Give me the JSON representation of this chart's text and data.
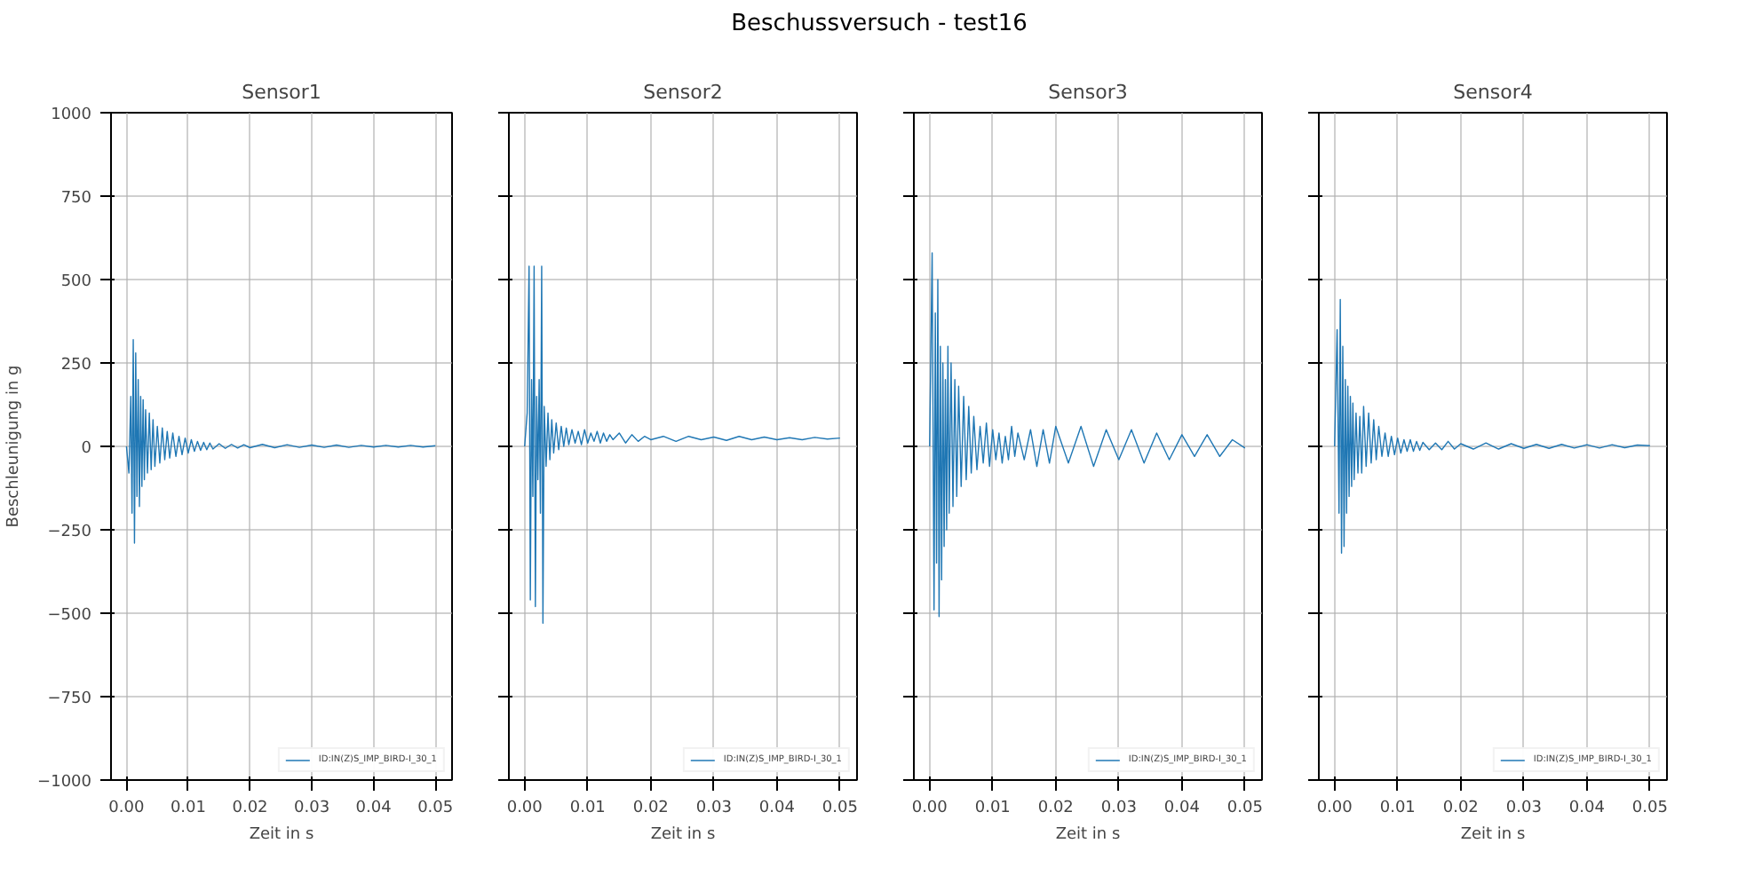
{
  "chart_data": [
    {
      "type": "line",
      "title": "Sensor1",
      "xlabel": "Zeit in s",
      "ylabel": "Beschleunigung in g",
      "annotations": [
        "Beschussversuch - test16"
      ],
      "xlim": [
        -0.0025,
        0.0527
      ],
      "ylim": [
        -1000,
        1000
      ],
      "xticks": [
        {
          "value": 0,
          "label": "0.00"
        },
        {
          "value": 0.01,
          "label": "0.01"
        },
        {
          "value": 0.02,
          "label": "0.02"
        },
        {
          "value": 0.03,
          "label": "0.03"
        },
        {
          "value": 0.04,
          "label": "0.04"
        },
        {
          "value": 0.05,
          "label": "0.05"
        }
      ],
      "yticks": [
        {
          "value": -1000,
          "label": "−1000"
        },
        {
          "value": -750,
          "label": "−750"
        },
        {
          "value": -500,
          "label": "−500"
        },
        {
          "value": -250,
          "label": "−250"
        },
        0,
        250,
        500,
        750,
        1000
      ],
      "grid": true,
      "legend": "bottom right",
      "x": [
        0,
        0.0004,
        0.0007,
        0.0009,
        0.0011,
        0.0013,
        0.0015,
        0.0017,
        0.0019,
        0.0021,
        0.0023,
        0.0025,
        0.0027,
        0.0029,
        0.0031,
        0.0034,
        0.0037,
        0.004,
        0.0043,
        0.0046,
        0.005,
        0.0054,
        0.0058,
        0.0062,
        0.0066,
        0.007,
        0.0075,
        0.008,
        0.0085,
        0.009,
        0.0095,
        0.01,
        0.0105,
        0.011,
        0.0115,
        0.012,
        0.0125,
        0.013,
        0.0135,
        0.014,
        0.015,
        0.016,
        0.017,
        0.018,
        0.019,
        0.02,
        0.022,
        0.024,
        0.026,
        0.028,
        0.03,
        0.032,
        0.034,
        0.036,
        0.038,
        0.04,
        0.042,
        0.044,
        0.046,
        0.048,
        0.05
      ],
      "series": [
        {
          "name": "ID:IN(Z)S_IMP_BIRD-I_30_1",
          "color": "#1f77b4",
          "values": [
            0,
            -80,
            150,
            -200,
            320,
            -290,
            280,
            -150,
            200,
            -180,
            150,
            -120,
            140,
            -100,
            110,
            -80,
            100,
            -70,
            80,
            -60,
            60,
            -50,
            55,
            -40,
            45,
            -35,
            40,
            -30,
            30,
            -25,
            25,
            -20,
            20,
            -15,
            15,
            -12,
            12,
            -10,
            10,
            -8,
            8,
            -6,
            6,
            -5,
            5,
            -4,
            6,
            -4,
            5,
            -3,
            4,
            -3,
            4,
            -3,
            3,
            -2,
            3,
            -2,
            3,
            -2,
            2
          ]
        }
      ]
    },
    {
      "type": "line",
      "title": "Sensor2",
      "xlabel": "Zeit in s",
      "xlim": [
        -0.0025,
        0.0527
      ],
      "ylim": [
        -1000,
        1000
      ],
      "tick_labels": "x",
      "xticks": [
        {
          "value": 0,
          "label": "0.00"
        },
        {
          "value": 0.01,
          "label": "0.01"
        },
        {
          "value": 0.02,
          "label": "0.02"
        },
        {
          "value": 0.03,
          "label": "0.03"
        },
        {
          "value": 0.04,
          "label": "0.04"
        },
        {
          "value": 0.05,
          "label": "0.05"
        }
      ],
      "yticks": [
        -1000,
        -750,
        -500,
        -250,
        0,
        250,
        500,
        750,
        1000
      ],
      "grid": true,
      "legend": "bottom right",
      "x": [
        0,
        0.0004,
        0.0007,
        0.0009,
        0.0011,
        0.0013,
        0.0015,
        0.0017,
        0.0019,
        0.0021,
        0.0023,
        0.0025,
        0.0027,
        0.0029,
        0.0031,
        0.0034,
        0.0037,
        0.004,
        0.0043,
        0.0046,
        0.005,
        0.0054,
        0.0058,
        0.0062,
        0.0066,
        0.007,
        0.0075,
        0.008,
        0.0085,
        0.009,
        0.0095,
        0.01,
        0.0105,
        0.011,
        0.0115,
        0.012,
        0.0125,
        0.013,
        0.0135,
        0.014,
        0.015,
        0.016,
        0.017,
        0.018,
        0.019,
        0.02,
        0.022,
        0.024,
        0.026,
        0.028,
        0.03,
        0.032,
        0.034,
        0.036,
        0.038,
        0.04,
        0.042,
        0.044,
        0.046,
        0.048,
        0.05
      ],
      "series": [
        {
          "name": "ID:IN(Z)S_IMP_BIRD-I_30_1",
          "color": "#1f77b4",
          "values": [
            0,
            100,
            540,
            -460,
            200,
            -150,
            540,
            -480,
            150,
            -100,
            200,
            -200,
            540,
            -530,
            120,
            -60,
            100,
            -40,
            80,
            -20,
            70,
            -10,
            60,
            0,
            55,
            5,
            50,
            10,
            45,
            5,
            50,
            10,
            40,
            15,
            45,
            10,
            40,
            15,
            35,
            20,
            40,
            10,
            35,
            15,
            30,
            20,
            30,
            15,
            30,
            20,
            28,
            18,
            30,
            20,
            28,
            20,
            26,
            20,
            27,
            22,
            25
          ]
        }
      ]
    },
    {
      "type": "line",
      "title": "Sensor3",
      "xlabel": "Zeit in s",
      "xlim": [
        -0.0025,
        0.0527
      ],
      "ylim": [
        -1000,
        1000
      ],
      "tick_labels": "x",
      "xticks": [
        {
          "value": 0,
          "label": "0.00"
        },
        {
          "value": 0.01,
          "label": "0.01"
        },
        {
          "value": 0.02,
          "label": "0.02"
        },
        {
          "value": 0.03,
          "label": "0.03"
        },
        {
          "value": 0.04,
          "label": "0.04"
        },
        {
          "value": 0.05,
          "label": "0.05"
        }
      ],
      "yticks": [
        -1000,
        -750,
        -500,
        -250,
        0,
        250,
        500,
        750,
        1000
      ],
      "grid": true,
      "legend": "bottom right",
      "x": [
        0,
        0.0004,
        0.0007,
        0.0009,
        0.0011,
        0.0013,
        0.0015,
        0.0017,
        0.0019,
        0.0021,
        0.0023,
        0.0025,
        0.0027,
        0.0029,
        0.0031,
        0.0034,
        0.0037,
        0.004,
        0.0043,
        0.0046,
        0.005,
        0.0054,
        0.0058,
        0.0062,
        0.0066,
        0.007,
        0.0075,
        0.008,
        0.0085,
        0.009,
        0.0095,
        0.01,
        0.0105,
        0.011,
        0.0115,
        0.012,
        0.0125,
        0.013,
        0.0135,
        0.014,
        0.015,
        0.016,
        0.017,
        0.018,
        0.019,
        0.02,
        0.022,
        0.024,
        0.026,
        0.028,
        0.03,
        0.032,
        0.034,
        0.036,
        0.038,
        0.04,
        0.042,
        0.044,
        0.046,
        0.048,
        0.05
      ],
      "series": [
        {
          "name": "ID:IN(Z)S_IMP_BIRD-I_30_1",
          "color": "#1f77b4",
          "values": [
            0,
            580,
            -490,
            400,
            -350,
            500,
            -510,
            300,
            -400,
            250,
            -300,
            200,
            -250,
            300,
            -200,
            250,
            -180,
            200,
            -150,
            180,
            -120,
            150,
            -100,
            120,
            -80,
            90,
            -70,
            60,
            -50,
            70,
            -60,
            50,
            -40,
            40,
            -50,
            30,
            -40,
            60,
            -30,
            40,
            -40,
            50,
            -60,
            50,
            -50,
            60,
            -50,
            60,
            -60,
            50,
            -40,
            50,
            -50,
            40,
            -40,
            35,
            -30,
            35,
            -30,
            20,
            -5
          ]
        }
      ]
    },
    {
      "type": "line",
      "title": "Sensor4",
      "xlabel": "Zeit in s",
      "xlim": [
        -0.0025,
        0.0527
      ],
      "ylim": [
        -1000,
        1000
      ],
      "tick_labels": "x",
      "xticks": [
        {
          "value": 0,
          "label": "0.00"
        },
        {
          "value": 0.01,
          "label": "0.01"
        },
        {
          "value": 0.02,
          "label": "0.02"
        },
        {
          "value": 0.03,
          "label": "0.03"
        },
        {
          "value": 0.04,
          "label": "0.04"
        },
        {
          "value": 0.05,
          "label": "0.05"
        }
      ],
      "yticks": [
        -1000,
        -750,
        -500,
        -250,
        0,
        250,
        500,
        750,
        1000
      ],
      "grid": true,
      "legend": "bottom right",
      "x": [
        0,
        0.0004,
        0.0007,
        0.0009,
        0.0011,
        0.0013,
        0.0015,
        0.0017,
        0.0019,
        0.0021,
        0.0023,
        0.0025,
        0.0027,
        0.0029,
        0.0031,
        0.0034,
        0.0037,
        0.004,
        0.0043,
        0.0046,
        0.005,
        0.0054,
        0.0058,
        0.0062,
        0.0066,
        0.007,
        0.0075,
        0.008,
        0.0085,
        0.009,
        0.0095,
        0.01,
        0.0105,
        0.011,
        0.0115,
        0.012,
        0.0125,
        0.013,
        0.0135,
        0.014,
        0.015,
        0.016,
        0.017,
        0.018,
        0.019,
        0.02,
        0.022,
        0.024,
        0.026,
        0.028,
        0.03,
        0.032,
        0.034,
        0.036,
        0.038,
        0.04,
        0.042,
        0.044,
        0.046,
        0.048,
        0.05
      ],
      "series": [
        {
          "name": "ID:IN(Z)S_IMP_BIRD-I_30_1",
          "color": "#1f77b4",
          "values": [
            0,
            350,
            -200,
            440,
            -320,
            300,
            -300,
            200,
            -200,
            180,
            -150,
            150,
            -120,
            130,
            -100,
            100,
            -80,
            90,
            -80,
            120,
            -60,
            100,
            -50,
            80,
            -40,
            60,
            -30,
            40,
            -30,
            30,
            -25,
            25,
            -20,
            20,
            -15,
            20,
            -15,
            15,
            -12,
            12,
            -10,
            10,
            -10,
            15,
            -8,
            8,
            -8,
            10,
            -8,
            8,
            -6,
            6,
            -6,
            6,
            -5,
            5,
            -5,
            5,
            -4,
            4,
            2
          ]
        }
      ]
    }
  ]
}
